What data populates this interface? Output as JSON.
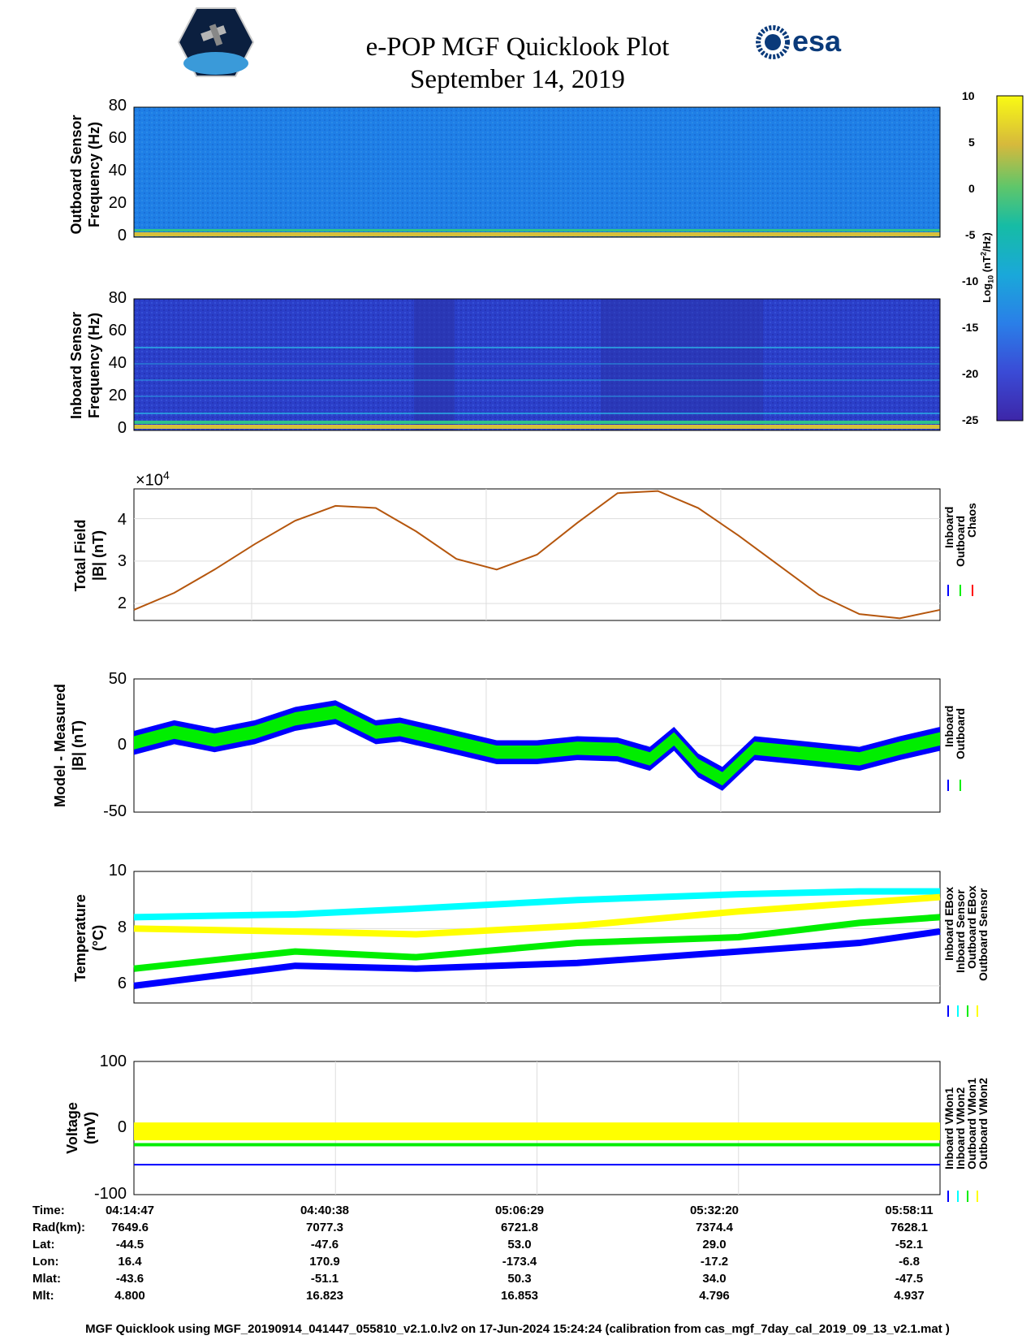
{
  "header": {
    "title_line1": "e-POP MGF Quicklook Plot",
    "title_line2": "September 14, 2019",
    "left_logo_text": "CASSIOPE",
    "right_logo_text": "esa"
  },
  "colors": {
    "inboard": "#0000ff",
    "outboard": "#00ee00",
    "chaos": "#ff0000",
    "cyan": "#00ffff",
    "yellow": "#ffff00",
    "spectro_outboard_bg": "#1f7fe6",
    "spectro_inboard_bg": "#2b3fc9"
  },
  "colorbar": {
    "label": "Log10 (nT²/Hz)",
    "label_main": "Log",
    "label_sub": "10",
    "label_rest": " (nT",
    "label_sup": "2",
    "label_end": "/Hz)",
    "ticks": [
      "10",
      "5",
      "0",
      "-5",
      "-10",
      "-15",
      "-20",
      "-25"
    ],
    "range": [
      -25,
      10
    ]
  },
  "chart_data": [
    {
      "type": "heatmap",
      "panel": "outboard-spectrogram",
      "ylabel_line1": "Outboard Sensor",
      "ylabel_line2": "Frequency (Hz)",
      "yticks": [
        "80",
        "60",
        "40",
        "20",
        "0"
      ],
      "ylim": [
        0,
        80
      ]
    },
    {
      "type": "heatmap",
      "panel": "inboard-spectrogram",
      "ylabel_line1": "Inboard Sensor",
      "ylabel_line2": "Frequency (Hz)",
      "yticks": [
        "80",
        "60",
        "40",
        "20",
        "0"
      ],
      "ylim": [
        0,
        80
      ]
    },
    {
      "type": "line",
      "panel": "total-field",
      "ylabel_line1": "Total Field",
      "ylabel_line2": "|B| (nT)",
      "exponent_label": "×10",
      "exponent_sup": "4",
      "yticks": [
        "4",
        "3",
        "2"
      ],
      "ylim": [
        1.6,
        4.7
      ],
      "legend": [
        "Inboard",
        "Outboard",
        "Chaos"
      ],
      "series": [
        {
          "name": "Chaos",
          "x": [
            0,
            0.05,
            0.1,
            0.15,
            0.2,
            0.25,
            0.3,
            0.35,
            0.4,
            0.45,
            0.5,
            0.55,
            0.6,
            0.65,
            0.7,
            0.75,
            0.8,
            0.85,
            0.9,
            0.95,
            1.0
          ],
          "values": [
            1.85,
            2.25,
            2.8,
            3.4,
            3.95,
            4.3,
            4.25,
            3.7,
            3.05,
            2.8,
            3.15,
            3.9,
            4.6,
            4.65,
            4.25,
            3.6,
            2.9,
            2.2,
            1.75,
            1.65,
            1.85
          ]
        }
      ]
    },
    {
      "type": "line",
      "panel": "model-minus-measured",
      "ylabel_line1": "Model - Measured",
      "ylabel_line2": "|B| (nT)",
      "yticks": [
        "50",
        "0",
        "-50"
      ],
      "ylim": [
        -50,
        50
      ],
      "legend": [
        "Inboard",
        "Outboard"
      ],
      "series": [
        {
          "name": "Inboard",
          "x": [
            0,
            0.05,
            0.1,
            0.15,
            0.2,
            0.25,
            0.3,
            0.33,
            0.38,
            0.45,
            0.5,
            0.55,
            0.6,
            0.64,
            0.67,
            0.7,
            0.73,
            0.77,
            0.82,
            0.9,
            0.95,
            1.0
          ],
          "values": [
            2,
            10,
            4,
            10,
            20,
            25,
            10,
            12,
            5,
            -5,
            -5,
            -2,
            -3,
            -10,
            5,
            -15,
            -25,
            -2,
            -5,
            -10,
            -2,
            5
          ]
        }
      ]
    },
    {
      "type": "line",
      "panel": "temperature",
      "ylabel_line1": "Temperature",
      "ylabel_line2": "(°C)",
      "yticks": [
        "10",
        "8",
        "6"
      ],
      "ylim": [
        5.4,
        10
      ],
      "legend": [
        "Inboard EBox",
        "Inboard Sensor",
        "Outboard EBox",
        "Outboard Sensor"
      ],
      "series": [
        {
          "name": "Inboard EBox",
          "x": [
            0,
            0.2,
            0.35,
            0.55,
            0.75,
            0.9,
            1.0
          ],
          "values": [
            6.0,
            6.7,
            6.6,
            6.8,
            7.2,
            7.5,
            7.9
          ]
        },
        {
          "name": "Inboard Sensor",
          "x": [
            0,
            0.2,
            0.35,
            0.55,
            0.75,
            0.9,
            1.0
          ],
          "values": [
            6.6,
            7.2,
            7.0,
            7.5,
            7.7,
            8.2,
            8.4
          ]
        },
        {
          "name": "Outboard EBox",
          "x": [
            0,
            0.2,
            0.35,
            0.55,
            0.75,
            0.9,
            1.0
          ],
          "values": [
            8.4,
            8.5,
            8.7,
            9.0,
            9.2,
            9.3,
            9.3
          ]
        },
        {
          "name": "Outboard Sensor",
          "x": [
            0,
            0.2,
            0.35,
            0.55,
            0.75,
            0.9,
            1.0
          ],
          "values": [
            8.0,
            7.9,
            7.8,
            8.1,
            8.6,
            8.9,
            9.1
          ]
        }
      ]
    },
    {
      "type": "line",
      "panel": "voltage",
      "ylabel_line1": "Voltage",
      "ylabel_line2": "(mV)",
      "yticks": [
        "100",
        "0",
        "-100"
      ],
      "ylim": [
        -100,
        100
      ],
      "legend": [
        "Inboard VMon1",
        "Inboard VMon2",
        "Outboard VMon1",
        "Outboard VMon2"
      ],
      "series": [
        {
          "name": "Inboard VMon1",
          "x": [
            0,
            1.0
          ],
          "values": [
            -55,
            -55
          ]
        },
        {
          "name": "Inboard VMon2",
          "x": [
            0,
            1.0
          ],
          "values": [
            -25,
            -25
          ]
        },
        {
          "name": "Outboard VMon1",
          "x": [
            0,
            1.0
          ],
          "values": [
            0,
            0
          ]
        },
        {
          "name": "Outboard VMon2",
          "x": [
            0,
            1.0
          ],
          "values": [
            -5,
            -5
          ]
        }
      ]
    }
  ],
  "ephemeris": {
    "labels": [
      "Time:",
      "Rad(km):",
      "Lat:",
      "Lon:",
      "Mlat:",
      "Mlt:"
    ],
    "columns": [
      [
        "04:14:47",
        "7649.6",
        "-44.5",
        "16.4",
        "-43.6",
        "4.800"
      ],
      [
        "04:40:38",
        "7077.3",
        "-47.6",
        "170.9",
        "-51.1",
        "16.823"
      ],
      [
        "05:06:29",
        "6721.8",
        "53.0",
        "-173.4",
        "50.3",
        "16.853"
      ],
      [
        "05:32:20",
        "7374.4",
        "29.0",
        "-17.2",
        "34.0",
        "4.796"
      ],
      [
        "05:58:11",
        "7628.1",
        "-52.1",
        "-6.8",
        "-47.5",
        "4.937"
      ]
    ]
  },
  "footer": "MGF Quicklook using MGF_20190914_041447_055810_v2.1.0.lv2 on 17-Jun-2024 15:24:24 (calibration from cas_mgf_7day_cal_2019_09_13_v2.1.mat )"
}
